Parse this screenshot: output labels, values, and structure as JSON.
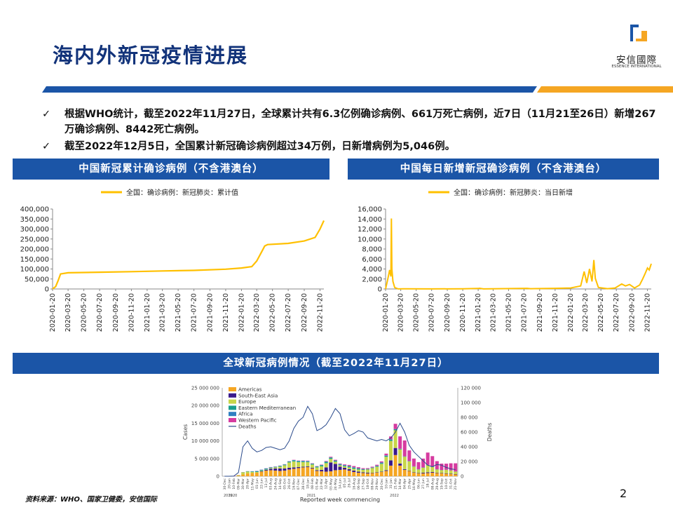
{
  "header": {
    "title": "海内外新冠疫情进展",
    "logo_text": "安信國際",
    "logo_subtext": "ESSENCE INTERNATIONAL"
  },
  "bullets": [
    {
      "icon": "check-icon",
      "text": "根据WHO统计，截至2022年11月27日，全球累计共有6.3亿例确诊病例、661万死亡病例，近7日（11月21至26日）新增267万确诊病例、8442死亡病例。"
    },
    {
      "icon": "check-icon",
      "text": "截至2022年12月5日，全国累计新冠确诊病例超过34万例，日新增病例为5,046例。"
    }
  ],
  "panels": {
    "left_title": "中国新冠累计确诊病例（不含港澳台）",
    "right_title": "中国每日新增新冠确诊病例（不含港澳台）",
    "bottom_title": "全球新冠病例情况（截至2022年11月27日）"
  },
  "colors": {
    "brand_blue": "#1b55a7",
    "brand_orange": "#f5a623",
    "line_yellow": "#ffc000"
  },
  "chart_data": [
    {
      "type": "line",
      "legend": [
        "全国：确诊病例：新冠肺炎：累计值"
      ],
      "x_ticks": [
        "2020-01-20",
        "2020-03-20",
        "2020-05-20",
        "2020-07-20",
        "2020-09-20",
        "2020-11-20",
        "2021-01-20",
        "2021-03-20",
        "2021-05-20",
        "2021-07-20",
        "2021-09-20",
        "2021-11-20",
        "2022-01-20",
        "2022-03-20",
        "2022-05-20",
        "2022-07-20",
        "2022-09-20",
        "2022-11-20"
      ],
      "y_ticks": [
        "0",
        "50,000",
        "100,000",
        "150,000",
        "200,000",
        "250,000",
        "300,000",
        "350,000",
        "400,000"
      ],
      "ylim": [
        0,
        400000
      ],
      "series": [
        {
          "name": "全国：确诊病例：新冠肺炎：累计值",
          "x": [
            "2020-01-20",
            "2020-02-01",
            "2020-02-10",
            "2020-02-20",
            "2020-03-20",
            "2020-07-20",
            "2020-11-20",
            "2021-03-20",
            "2021-07-20",
            "2021-11-20",
            "2022-01-20",
            "2022-03-01",
            "2022-03-20",
            "2022-04-10",
            "2022-04-20",
            "2022-05-01",
            "2022-07-20",
            "2022-09-20",
            "2022-11-01",
            "2022-11-20",
            "2022-12-05"
          ],
          "values": [
            300,
            12000,
            40000,
            75000,
            81000,
            84000,
            86500,
            90000,
            93000,
            99000,
            105000,
            112000,
            140000,
            190000,
            215000,
            222000,
            228000,
            240000,
            258000,
            300000,
            342000
          ]
        }
      ]
    },
    {
      "type": "line",
      "legend": [
        "全国：确诊病例：新冠肺炎：当日新增"
      ],
      "x_ticks": [
        "2020-01-20",
        "2020-03-20",
        "2020-05-20",
        "2020-07-20",
        "2020-09-20",
        "2020-11-20",
        "2021-01-20",
        "2021-03-20",
        "2021-05-20",
        "2021-07-20",
        "2021-09-20",
        "2021-11-20",
        "2022-01-20",
        "2022-03-20",
        "2022-05-20",
        "2022-07-20",
        "2022-09-20",
        "2022-11-20"
      ],
      "y_ticks": [
        "0",
        "2,000",
        "4,000",
        "6,000",
        "8,000",
        "10,000",
        "12,000",
        "14,000",
        "16,000"
      ],
      "ylim": [
        0,
        16000
      ],
      "series": [
        {
          "name": "全国：确诊病例：新冠肺炎：当日新增",
          "x": [
            "2020-01-20",
            "2020-01-28",
            "2020-02-05",
            "2020-02-10",
            "2020-02-12",
            "2020-02-14",
            "2020-02-18",
            "2020-02-25",
            "2020-03-10",
            "2020-04-01",
            "2020-07-20",
            "2020-11-20",
            "2021-01-20",
            "2021-01-25",
            "2021-02-10",
            "2021-08-01",
            "2021-08-15",
            "2021-11-20",
            "2022-01-20",
            "2022-03-01",
            "2022-03-15",
            "2022-03-25",
            "2022-04-05",
            "2022-04-15",
            "2022-04-22",
            "2022-04-28",
            "2022-05-10",
            "2022-06-15",
            "2022-07-15",
            "2022-08-10",
            "2022-08-25",
            "2022-09-10",
            "2022-09-30",
            "2022-10-20",
            "2022-11-01",
            "2022-11-10",
            "2022-11-20",
            "2022-11-27",
            "2022-12-05"
          ],
          "values": [
            0,
            1800,
            3800,
            2500,
            14100,
            4000,
            1500,
            300,
            20,
            30,
            20,
            40,
            100,
            140,
            10,
            130,
            60,
            120,
            200,
            600,
            3500,
            1200,
            4000,
            1500,
            5800,
            2100,
            300,
            60,
            200,
            1000,
            600,
            900,
            200,
            800,
            2000,
            3000,
            4200,
            3800,
            5046
          ]
        }
      ]
    },
    {
      "type": "bar",
      "xlabel": "Reported week commencing",
      "ylabel": "Cases",
      "y2label": "Deaths",
      "ylim": [
        0,
        25000000
      ],
      "y2lim": [
        0,
        120000
      ],
      "y_ticks": [
        "0",
        "5 000 000",
        "10 000 000",
        "15 000 000",
        "20 000 000",
        "25 000 000"
      ],
      "y2_ticks": [
        "0",
        "20 000",
        "40 000",
        "60 000",
        "80 000",
        "100 000",
        "120 000"
      ],
      "legend": [
        "Americas",
        "South-East Asia",
        "Europe",
        "Eastern Mediterranean",
        "Africa",
        "Western Pacific",
        "Deaths"
      ],
      "legend_colors": [
        "#f5a623",
        "#3a1a8c",
        "#c8d64a",
        "#1a9e8f",
        "#2f7fc1",
        "#d63ba0",
        "#2b4b8c"
      ],
      "x_ticks": [
        "30-Dec",
        "20-Jan",
        "10-Feb",
        "09-Mar",
        "30-Mar",
        "20-Apr",
        "11-May",
        "01-Jun",
        "22-Jun",
        "13-Jul",
        "03-Aug",
        "24-Aug",
        "14-Sep",
        "05-Oct",
        "26-Oct",
        "16-Nov",
        "07-Dec",
        "28-Dec",
        "18-Jan",
        "08-Feb",
        "01-Mar",
        "22-Mar",
        "12-Apr",
        "03-May",
        "24-May",
        "14-Jun",
        "05-Jul",
        "26-Jul",
        "16-Aug",
        "06-Sep",
        "27-Sep",
        "18-Oct",
        "08-Nov",
        "29-Nov",
        "20-Dec",
        "10-Jan",
        "31-Jan",
        "21-Feb",
        "14-Mar",
        "04-Apr",
        "25-Apr",
        "16-May",
        "06-Jun",
        "27-Jun",
        "18-Jul",
        "08-Aug",
        "29-Aug",
        "19-Sep",
        "10-Oct",
        "31-Oct",
        "21-Nov"
      ],
      "period_labels": [
        "2019",
        "2020",
        "2021",
        "2022"
      ],
      "series": [
        {
          "name": "Americas",
          "values": [
            0,
            0,
            0,
            0.1,
            0.5,
            0.8,
            0.9,
            1.0,
            1.3,
            1.6,
            1.7,
            1.6,
            1.5,
            1.6,
            1.9,
            2.1,
            2.3,
            2.5,
            2.6,
            2.2,
            1.5,
            1.4,
            1.3,
            1.4,
            1.7,
            1.8,
            1.9,
            1.6,
            1.2,
            1.0,
            0.9,
            0.8,
            0.9,
            1.0,
            1.2,
            1.5,
            3.0,
            6.0,
            3.0,
            1.8,
            1.5,
            1.0,
            0.8,
            0.8,
            0.9,
            1.0,
            0.9,
            0.8,
            0.7,
            0.6,
            0.5
          ]
        },
        {
          "name": "South-East Asia",
          "values": [
            0,
            0,
            0,
            0,
            0,
            0,
            0,
            0,
            0.1,
            0.2,
            0.4,
            0.6,
            0.7,
            0.6,
            0.5,
            0.4,
            0.3,
            0.2,
            0.2,
            0.2,
            0.2,
            0.4,
            1.2,
            2.5,
            1.8,
            0.9,
            0.5,
            0.4,
            0.4,
            0.3,
            0.2,
            0.2,
            0.1,
            0.1,
            0.1,
            0.2,
            1.5,
            2.0,
            0.6,
            0.2,
            0.1,
            0.1,
            0.1,
            0.2,
            0.2,
            0.2,
            0.1,
            0.1,
            0.1,
            0.1,
            0.1
          ]
        },
        {
          "name": "Europe",
          "values": [
            0,
            0,
            0,
            0.2,
            0.6,
            0.5,
            0.3,
            0.2,
            0.1,
            0.1,
            0.2,
            0.3,
            0.5,
            0.9,
            1.5,
            1.7,
            1.4,
            1.3,
            1.2,
            0.9,
            0.8,
            1.0,
            1.2,
            1.0,
            0.6,
            0.4,
            0.4,
            0.5,
            0.5,
            0.6,
            0.7,
            0.9,
            1.3,
            1.6,
            2.2,
            3.8,
            5.5,
            5.0,
            4.0,
            3.5,
            2.6,
            1.6,
            1.0,
            1.4,
            2.0,
            1.4,
            0.9,
            0.8,
            1.0,
            0.9,
            0.7
          ]
        },
        {
          "name": "Eastern Mediterranean",
          "values": [
            0,
            0,
            0,
            0,
            0.05,
            0.1,
            0.15,
            0.2,
            0.25,
            0.2,
            0.15,
            0.15,
            0.2,
            0.2,
            0.25,
            0.3,
            0.25,
            0.2,
            0.2,
            0.2,
            0.25,
            0.35,
            0.4,
            0.35,
            0.25,
            0.2,
            0.2,
            0.3,
            0.35,
            0.3,
            0.2,
            0.15,
            0.15,
            0.15,
            0.2,
            0.3,
            0.4,
            0.3,
            0.15,
            0.1,
            0.08,
            0.06,
            0.05,
            0.06,
            0.08,
            0.07,
            0.05,
            0.05,
            0.04,
            0.04,
            0.04
          ]
        },
        {
          "name": "Africa",
          "values": [
            0,
            0,
            0,
            0,
            0.01,
            0.02,
            0.05,
            0.08,
            0.1,
            0.12,
            0.1,
            0.07,
            0.06,
            0.05,
            0.06,
            0.07,
            0.1,
            0.15,
            0.12,
            0.08,
            0.06,
            0.05,
            0.05,
            0.06,
            0.1,
            0.15,
            0.15,
            0.1,
            0.08,
            0.06,
            0.04,
            0.04,
            0.05,
            0.15,
            0.2,
            0.1,
            0.06,
            0.04,
            0.03,
            0.02,
            0.03,
            0.05,
            0.04,
            0.03,
            0.02,
            0.02,
            0.02,
            0.02,
            0.02,
            0.02,
            0.02
          ]
        },
        {
          "name": "Western Pacific",
          "values": [
            0,
            0.05,
            0.1,
            0.05,
            0.02,
            0.02,
            0.02,
            0.03,
            0.03,
            0.04,
            0.05,
            0.05,
            0.05,
            0.05,
            0.06,
            0.07,
            0.08,
            0.1,
            0.1,
            0.08,
            0.08,
            0.1,
            0.15,
            0.2,
            0.2,
            0.15,
            0.2,
            0.3,
            0.35,
            0.3,
            0.25,
            0.2,
            0.2,
            0.25,
            0.3,
            0.5,
            0.8,
            1.5,
            3.5,
            4.5,
            3.0,
            2.2,
            2.0,
            2.5,
            3.5,
            3.0,
            2.3,
            1.8,
            1.7,
            2.0,
            2.3
          ]
        },
        {
          "name": "Deaths",
          "axis": "y2",
          "values": [
            0,
            0,
            200,
            5000,
            40000,
            48000,
            38000,
            33000,
            35000,
            39000,
            40000,
            38000,
            36000,
            38000,
            48000,
            65000,
            75000,
            80000,
            95000,
            85000,
            62000,
            65000,
            70000,
            80000,
            92000,
            85000,
            63000,
            55000,
            58000,
            62000,
            60000,
            52000,
            50000,
            48000,
            50000,
            48000,
            52000,
            60000,
            72000,
            60000,
            42000,
            33000,
            27000,
            21000,
            15000,
            13000,
            16000,
            15000,
            12000,
            10000,
            9000
          ]
        }
      ]
    }
  ],
  "footer": {
    "source": "资料来源：WHO、国家卫健委，安信国际",
    "page_number": "2"
  }
}
